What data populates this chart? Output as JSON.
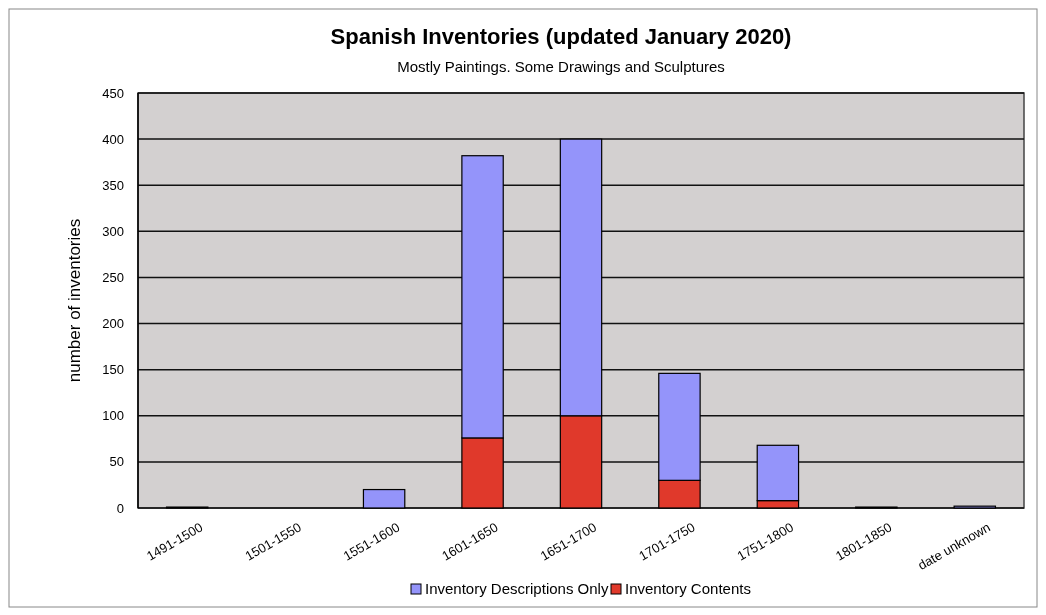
{
  "chart_data": {
    "type": "bar",
    "title": "Spanish Inventories (updated January 2020)",
    "subtitle": "Mostly Paintings. Some Drawings and Sculptures",
    "ylabel": "number of inventories",
    "categories": [
      "1491-1500",
      "1501-1550",
      "1551-1600",
      "1601-1650",
      "1651-1700",
      "1701-1750",
      "1751-1800",
      "1801-1850",
      "date unknown"
    ],
    "stacked": true,
    "series": [
      {
        "name": "Inventory Contents",
        "color": "#e0392b",
        "values": [
          0,
          0,
          0,
          76,
          100,
          30,
          8,
          0,
          0
        ]
      },
      {
        "name": "Inventory Descriptions Only",
        "color": "#9494fa",
        "values": [
          1,
          0,
          20,
          306,
          300,
          116,
          60,
          1,
          2
        ]
      }
    ],
    "ylim": [
      0,
      450
    ],
    "yticks": [
      0,
      50,
      100,
      150,
      200,
      250,
      300,
      350,
      400,
      450
    ],
    "grid": "y",
    "legend": "bottom"
  }
}
